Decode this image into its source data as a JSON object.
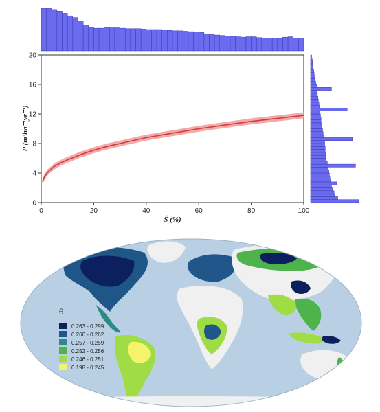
{
  "chart_data": [
    {
      "type": "line",
      "xlabel": "Ŝ (%)",
      "ylabel": "P (m³ha⁻¹yr⁻¹)",
      "xlim": [
        0,
        100
      ],
      "ylim": [
        0,
        20
      ],
      "x_ticks": [
        "0",
        "20",
        "40",
        "60",
        "80",
        "100"
      ],
      "y_ticks": [
        "0",
        "4",
        "8",
        "12",
        "16",
        "20"
      ],
      "grid": false,
      "series": [
        {
          "x": [
            0.5,
            1,
            2,
            3,
            5,
            7,
            10,
            15,
            20,
            25,
            30,
            40,
            50,
            60,
            70,
            80,
            90,
            100
          ],
          "y": [
            2.8,
            3.3,
            3.9,
            4.3,
            4.9,
            5.3,
            5.8,
            6.5,
            7.1,
            7.6,
            8.0,
            8.8,
            9.4,
            10.0,
            10.5,
            11.0,
            11.4,
            11.8
          ],
          "band": 0.4,
          "color": "#d23b3b",
          "band_color": "#f29a9a"
        }
      ]
    },
    {
      "type": "histogram",
      "axis": "x",
      "bin_range": [
        0,
        100
      ],
      "color": "#6b6bf0",
      "values": [
        1.0,
        1.0,
        0.97,
        0.93,
        0.88,
        0.82,
        0.78,
        0.7,
        0.6,
        0.55,
        0.53,
        0.53,
        0.55,
        0.54,
        0.54,
        0.53,
        0.52,
        0.52,
        0.52,
        0.51,
        0.5,
        0.5,
        0.5,
        0.49,
        0.48,
        0.47,
        0.47,
        0.46,
        0.45,
        0.44,
        0.43,
        0.4,
        0.38,
        0.37,
        0.36,
        0.35,
        0.34,
        0.33,
        0.32,
        0.33,
        0.33,
        0.31,
        0.3,
        0.3,
        0.3,
        0.29,
        0.32,
        0.33,
        0.3,
        0.3
      ]
    },
    {
      "type": "histogram",
      "axis": "y",
      "bin_range": [
        0,
        20
      ],
      "color": "#6b6bf0",
      "values": [
        0.92,
        0.52,
        0.46,
        0.45,
        0.43,
        0.4,
        0.5,
        0.38,
        0.37,
        0.36,
        0.35,
        0.33,
        0.86,
        0.32,
        0.3,
        0.3,
        0.29,
        0.28,
        0.28,
        0.27,
        0.27,
        0.8,
        0.25,
        0.24,
        0.23,
        0.22,
        0.21,
        0.2,
        0.2,
        0.19,
        0.18,
        0.7,
        0.17,
        0.16,
        0.15,
        0.14,
        0.13,
        0.12,
        0.4,
        0.12,
        0.1,
        0.09,
        0.08,
        0.07,
        0.06,
        0.05,
        0.04,
        0.04,
        0.03,
        0.02
      ]
    },
    {
      "type": "map",
      "legend_title": "θ",
      "legend": [
        {
          "label": "0.263 - 0.299",
          "color": "#0c1f5e"
        },
        {
          "label": "0.260 - 0.262",
          "color": "#21568a"
        },
        {
          "label": "0.257 - 0.259",
          "color": "#2f8a86"
        },
        {
          "label": "0.252 - 0.256",
          "color": "#4db34a"
        },
        {
          "label": "0.246 - 0.251",
          "color": "#9fdc45"
        },
        {
          "label": "0.198 - 0.245",
          "color": "#f5f36a"
        }
      ]
    }
  ]
}
